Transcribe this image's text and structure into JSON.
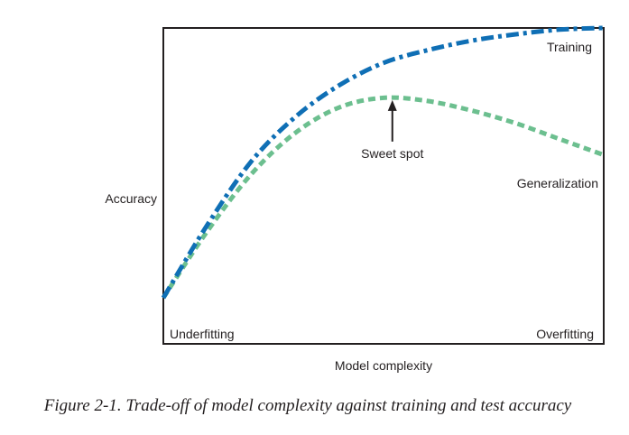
{
  "chart_data": {
    "type": "line",
    "title": "",
    "xlabel": "Model complexity",
    "ylabel": "Accuracy",
    "xlim": [
      0,
      1
    ],
    "ylim": [
      0,
      1
    ],
    "grid": false,
    "legend": "none",
    "x": [
      0,
      0.1,
      0.2,
      0.3,
      0.4,
      0.5,
      0.6,
      0.7,
      0.8,
      0.9,
      1.0
    ],
    "series": [
      {
        "name": "Training",
        "color": "#0f6fb5",
        "style": "dash-dot",
        "values": [
          0.15,
          0.38,
          0.58,
          0.72,
          0.82,
          0.89,
          0.93,
          0.96,
          0.98,
          0.995,
          1.0
        ]
      },
      {
        "name": "Generalization",
        "color": "#6cbf8f",
        "style": "dashed",
        "values": [
          0.15,
          0.36,
          0.54,
          0.67,
          0.75,
          0.78,
          0.77,
          0.74,
          0.7,
          0.65,
          0.6
        ]
      }
    ],
    "annotations": [
      {
        "text": "Sweet spot",
        "x": 0.52,
        "y": 0.79,
        "kind": "arrow"
      },
      {
        "text": "Underfitting",
        "x": 0,
        "y": 0,
        "kind": "corner"
      },
      {
        "text": "Overfitting",
        "x": 1,
        "y": 0,
        "kind": "corner"
      }
    ]
  },
  "caption": "Figure 2-1. Trade-off of model complexity against training and test accuracy"
}
